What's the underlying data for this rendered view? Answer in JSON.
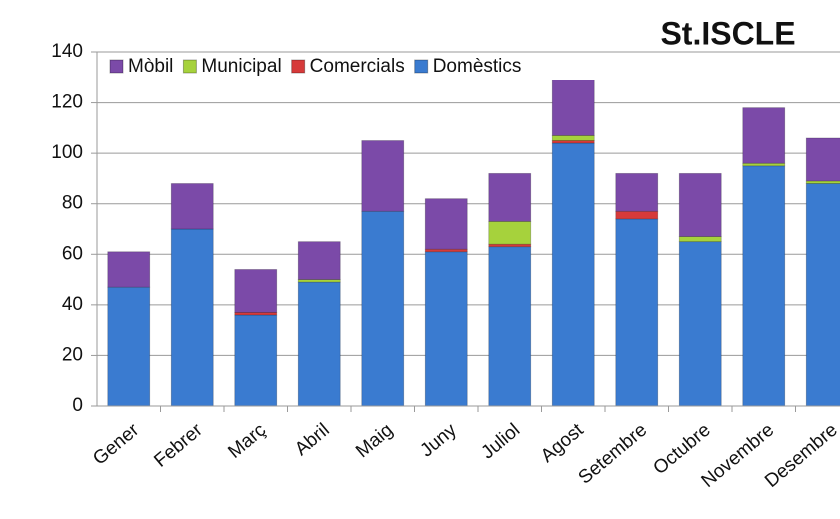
{
  "chart_data": {
    "type": "stacked_bar",
    "title": "St.ISCLE",
    "categories": [
      "Gener",
      "Febrer",
      "Març",
      "Abril",
      "Maig",
      "Juny",
      "Juliol",
      "Agost",
      "Setembre",
      "Octubre",
      "Novembre",
      "Desembre"
    ],
    "series": [
      {
        "name": "Domèstics",
        "color": "#3a7bd0",
        "values": [
          47,
          70,
          36,
          49,
          77,
          61,
          63,
          104,
          74,
          65,
          95,
          88
        ]
      },
      {
        "name": "Comercials",
        "color": "#d63a3a",
        "values": [
          0,
          0,
          1,
          0,
          0,
          1,
          1,
          1,
          3,
          0,
          0,
          0
        ]
      },
      {
        "name": "Municipal",
        "color": "#a6d23c",
        "values": [
          0,
          0,
          0,
          1,
          0,
          0,
          9,
          2,
          0,
          2,
          1,
          1
        ]
      },
      {
        "name": "Mòbil",
        "color": "#7b4aa8",
        "values": [
          14,
          18,
          17,
          15,
          28,
          20,
          19,
          23,
          15,
          25,
          22,
          17
        ]
      }
    ],
    "ylim": [
      0,
      140
    ],
    "yticks": [
      0,
      20,
      40,
      60,
      80,
      100,
      120,
      140
    ],
    "grid": true
  }
}
